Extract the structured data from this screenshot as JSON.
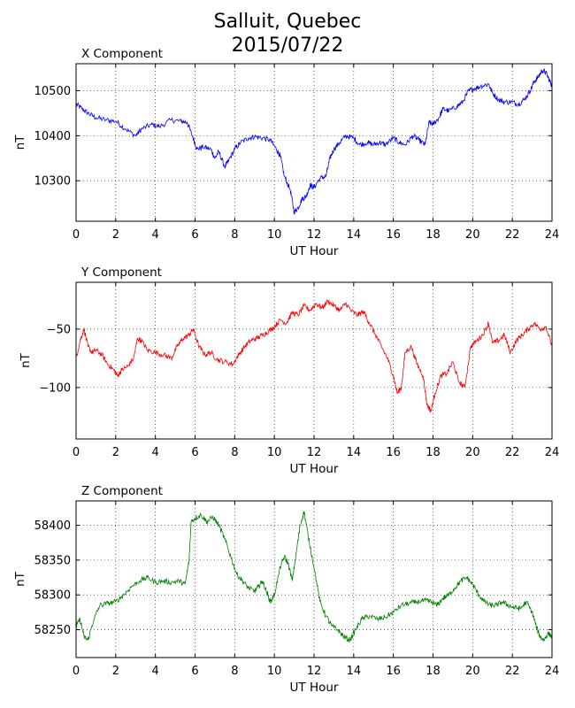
{
  "figure": {
    "title_line1": "Salluit, Quebec",
    "title_line2": "2015/07/22"
  },
  "chart_data": [
    {
      "type": "line",
      "title": "X Component",
      "xlabel": "UT Hour",
      "ylabel": "nT",
      "color": "#0000ff",
      "xlim": [
        0,
        24
      ],
      "ylim": [
        10210,
        10560
      ],
      "xticks": [
        0,
        2,
        4,
        6,
        8,
        10,
        12,
        14,
        16,
        18,
        20,
        22,
        24
      ],
      "yticks": [
        10300,
        10400,
        10500
      ],
      "grid": true,
      "series": [
        {
          "x": [
            0,
            0.3,
            0.6,
            1.0,
            1.5,
            2.0,
            2.5,
            3.0,
            3.3,
            3.8,
            4.2,
            4.8,
            5.3,
            5.6,
            5.9,
            6.1,
            6.4,
            6.8,
            7.0,
            7.2,
            7.5,
            7.7,
            8.0,
            8.3,
            8.7,
            9.0,
            9.4,
            9.8,
            10.1,
            10.3,
            10.5,
            10.8,
            11.0,
            11.2,
            11.4,
            11.6,
            11.8,
            12.0,
            12.3,
            12.6,
            12.8,
            13.0,
            13.3,
            13.6,
            14.0,
            14.3,
            14.7,
            15.0,
            15.3,
            15.6,
            16.0,
            16.3,
            16.6,
            17.0,
            17.3,
            17.6,
            17.8,
            18.0,
            18.3,
            18.5,
            18.8,
            19.2,
            19.5,
            19.8,
            20.1,
            20.4,
            20.8,
            21.0,
            21.3,
            21.6,
            22.0,
            22.3,
            22.6,
            22.9,
            23.1,
            23.3,
            23.5,
            23.7,
            23.9,
            24.0
          ],
          "y": [
            10470,
            10460,
            10450,
            10440,
            10435,
            10432,
            10415,
            10400,
            10415,
            10425,
            10420,
            10435,
            10432,
            10430,
            10395,
            10370,
            10375,
            10370,
            10350,
            10365,
            10330,
            10345,
            10370,
            10385,
            10395,
            10398,
            10395,
            10390,
            10370,
            10355,
            10310,
            10280,
            10230,
            10240,
            10260,
            10265,
            10290,
            10285,
            10305,
            10310,
            10350,
            10370,
            10385,
            10400,
            10395,
            10380,
            10385,
            10380,
            10385,
            10380,
            10395,
            10385,
            10380,
            10400,
            10390,
            10380,
            10430,
            10425,
            10440,
            10460,
            10455,
            10465,
            10475,
            10500,
            10505,
            10510,
            10515,
            10495,
            10480,
            10475,
            10475,
            10470,
            10480,
            10500,
            10520,
            10530,
            10545,
            10540,
            10520,
            10510
          ]
        }
      ]
    },
    {
      "type": "line",
      "title": "Y Component",
      "xlabel": "UT Hour",
      "ylabel": "nT",
      "color": "#ff0000",
      "xlim": [
        0,
        24
      ],
      "ylim": [
        -144,
        -10
      ],
      "xticks": [
        0,
        2,
        4,
        6,
        8,
        10,
        12,
        14,
        16,
        18,
        20,
        22,
        24
      ],
      "yticks": [
        -50,
        -100
      ],
      "grid": true,
      "series": [
        {
          "x": [
            0,
            0.2,
            0.4,
            0.6,
            0.8,
            1.0,
            1.3,
            1.6,
            1.9,
            2.1,
            2.3,
            2.6,
            2.9,
            3.1,
            3.3,
            3.6,
            4.0,
            4.4,
            4.8,
            5.1,
            5.4,
            5.7,
            5.9,
            6.2,
            6.5,
            6.8,
            7.1,
            7.5,
            7.9,
            8.2,
            8.5,
            8.8,
            9.1,
            9.4,
            9.7,
            10.0,
            10.3,
            10.6,
            10.9,
            11.2,
            11.5,
            11.8,
            12.1,
            12.4,
            12.7,
            13.0,
            13.3,
            13.6,
            13.9,
            14.2,
            14.5,
            14.8,
            15.1,
            15.4,
            15.7,
            16.0,
            16.2,
            16.4,
            16.6,
            16.9,
            17.2,
            17.5,
            17.7,
            17.9,
            18.1,
            18.4,
            18.7,
            19.0,
            19.3,
            19.6,
            19.9,
            20.2,
            20.5,
            20.8,
            21.0,
            21.3,
            21.6,
            21.9,
            22.2,
            22.5,
            22.8,
            23.1,
            23.4,
            23.7,
            24.0
          ],
          "y": [
            -75,
            -60,
            -50,
            -65,
            -70,
            -68,
            -72,
            -80,
            -85,
            -90,
            -85,
            -82,
            -75,
            -58,
            -60,
            -68,
            -70,
            -72,
            -75,
            -65,
            -58,
            -55,
            -50,
            -65,
            -72,
            -70,
            -76,
            -78,
            -80,
            -72,
            -65,
            -60,
            -58,
            -55,
            -52,
            -48,
            -42,
            -45,
            -36,
            -38,
            -30,
            -34,
            -28,
            -32,
            -26,
            -30,
            -34,
            -28,
            -35,
            -38,
            -35,
            -45,
            -55,
            -65,
            -75,
            -90,
            -105,
            -100,
            -70,
            -65,
            -80,
            -90,
            -115,
            -120,
            -105,
            -90,
            -88,
            -78,
            -95,
            -100,
            -65,
            -60,
            -55,
            -45,
            -62,
            -60,
            -55,
            -70,
            -60,
            -55,
            -50,
            -45,
            -50,
            -48,
            -65
          ]
        }
      ]
    },
    {
      "type": "line",
      "title": "Z Component",
      "xlabel": "UT Hour",
      "ylabel": "nT",
      "color": "#008000",
      "xlim": [
        0,
        24
      ],
      "ylim": [
        58210,
        58435
      ],
      "xticks": [
        0,
        2,
        4,
        6,
        8,
        10,
        12,
        14,
        16,
        18,
        20,
        22,
        24
      ],
      "yticks": [
        58250,
        58300,
        58350,
        58400
      ],
      "grid": true,
      "series": [
        {
          "x": [
            0,
            0.2,
            0.4,
            0.6,
            0.9,
            1.2,
            1.6,
            2.0,
            2.4,
            2.8,
            3.2,
            3.6,
            4.0,
            4.4,
            4.8,
            5.2,
            5.5,
            5.7,
            5.8,
            6.0,
            6.3,
            6.6,
            6.9,
            7.2,
            7.5,
            7.8,
            8.1,
            8.4,
            8.7,
            9.0,
            9.2,
            9.4,
            9.6,
            9.8,
            10.0,
            10.3,
            10.5,
            10.7,
            10.9,
            11.1,
            11.3,
            11.5,
            11.7,
            12.0,
            12.3,
            12.6,
            12.9,
            13.2,
            13.5,
            13.8,
            14.1,
            14.4,
            14.8,
            15.2,
            15.6,
            16.0,
            16.4,
            16.8,
            17.2,
            17.6,
            17.9,
            18.2,
            18.5,
            18.8,
            19.1,
            19.4,
            19.7,
            20.0,
            20.3,
            20.6,
            20.9,
            21.2,
            21.5,
            21.8,
            22.1,
            22.4,
            22.7,
            23.0,
            23.2,
            23.4,
            23.6,
            23.8,
            24.0
          ],
          "y": [
            58255,
            58265,
            58240,
            58235,
            58265,
            58285,
            58288,
            58290,
            58300,
            58312,
            58320,
            58325,
            58318,
            58320,
            58318,
            58320,
            58315,
            58350,
            58405,
            58410,
            58415,
            58405,
            58412,
            58400,
            58380,
            58355,
            58330,
            58320,
            58310,
            58305,
            58312,
            58320,
            58305,
            58290,
            58300,
            58340,
            58355,
            58345,
            58320,
            58360,
            58400,
            58420,
            58385,
            58340,
            58290,
            58270,
            58255,
            58250,
            58240,
            58235,
            58250,
            58265,
            58270,
            58265,
            58268,
            58275,
            58285,
            58288,
            58290,
            58292,
            58290,
            58285,
            58295,
            58300,
            58310,
            58320,
            58325,
            58315,
            58300,
            58290,
            58285,
            58285,
            58290,
            58285,
            58282,
            58280,
            58290,
            58275,
            58255,
            58240,
            58235,
            58245,
            58240
          ]
        }
      ]
    }
  ]
}
